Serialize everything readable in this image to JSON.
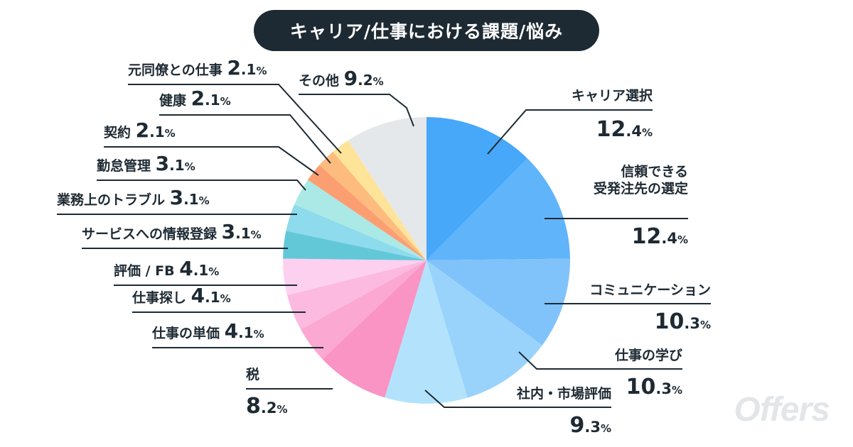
{
  "chart_data": {
    "type": "pie",
    "title": "キャリア/仕事における課題/悩み",
    "unit": "%",
    "slices": [
      {
        "label": "キャリア選択",
        "value": 12.4,
        "color": "#47a7f8"
      },
      {
        "label": "信頼できる\n受発注先の選定",
        "value": 12.4,
        "color": "#60b4fa"
      },
      {
        "label": "コミュニケーション",
        "value": 10.3,
        "color": "#80c3fb"
      },
      {
        "label": "仕事の学び",
        "value": 10.3,
        "color": "#99d3fc"
      },
      {
        "label": "社内・市場評価",
        "value": 9.3,
        "color": "#b3e3fc"
      },
      {
        "label": "税",
        "value": 8.2,
        "color": "#f994c4"
      },
      {
        "label": "仕事の単価",
        "value": 4.1,
        "color": "#fba8d2"
      },
      {
        "label": "仕事探し",
        "value": 4.1,
        "color": "#fdbae0"
      },
      {
        "label": "評価 / FB",
        "value": 4.1,
        "color": "#fdd0f0"
      },
      {
        "label": "サービスへの情報登録",
        "value": 3.1,
        "color": "#62c8d8"
      },
      {
        "label": "業務上のトラブル",
        "value": 3.1,
        "color": "#8ddbec"
      },
      {
        "label": "勤怠管理",
        "value": 3.1,
        "color": "#abe9e6"
      },
      {
        "label": "契約",
        "value": 2.1,
        "color": "#fb9f73"
      },
      {
        "label": "健康",
        "value": 2.1,
        "color": "#fdbc7e"
      },
      {
        "label": "元同僚との仕事",
        "value": 2.1,
        "color": "#fee498"
      },
      {
        "label": "その他",
        "value": 9.2,
        "color": "#e5e8ea"
      }
    ]
  },
  "brand": {
    "watermark": "Offers"
  }
}
